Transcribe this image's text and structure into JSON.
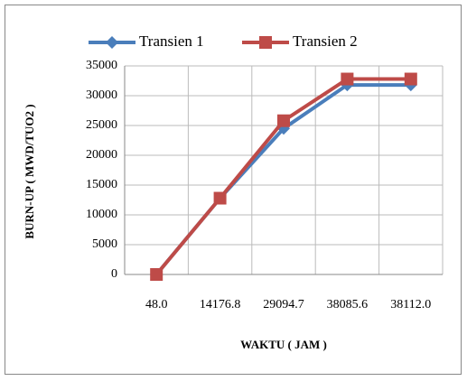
{
  "chart_data": {
    "type": "line",
    "y_label": "BURN-UP ( MWD/TUO2 )",
    "x_label": "WAKTU ( JAM )",
    "categories": [
      "48.0",
      "14176.8",
      "29094.7",
      "38085.6",
      "38112.0"
    ],
    "series": [
      {
        "name": "Transien 1",
        "color": "#4a7ebb",
        "marker": "diamond",
        "values": [
          0,
          12800,
          24500,
          31800,
          31800
        ]
      },
      {
        "name": "Transien 2",
        "color": "#be4b48",
        "marker": "square",
        "values": [
          0,
          12800,
          25800,
          32800,
          32800
        ]
      }
    ],
    "ylim": [
      0,
      35000
    ],
    "yticks": [
      0,
      5000,
      10000,
      15000,
      20000,
      25000,
      30000,
      35000
    ],
    "grid": true,
    "legend": "top"
  }
}
